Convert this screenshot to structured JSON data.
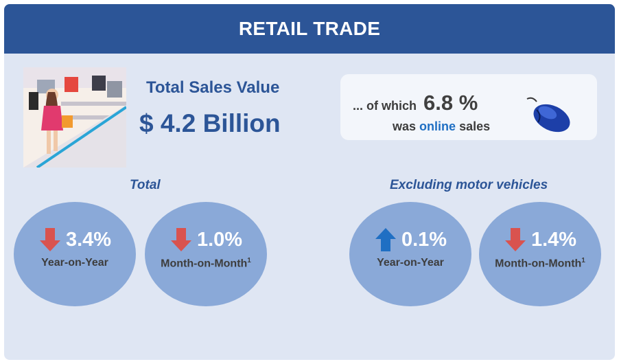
{
  "header": {
    "title": "RETAIL TRADE"
  },
  "summary": {
    "total_sales_label": "Total Sales Value",
    "total_sales_value": "$ 4.2 Billion"
  },
  "online": {
    "prefix": "... of which",
    "percent": "6.8 %",
    "was": "was",
    "online_word": "online",
    "suffix": "sales",
    "icon": "computer-mouse-icon"
  },
  "sections": {
    "total": {
      "title": "Total",
      "yoy": {
        "value": "3.4%",
        "label": "Year-on-Year",
        "direction": "down"
      },
      "mom": {
        "value": "1.0%",
        "label": "Month-on-Month",
        "footnote": "1",
        "direction": "down"
      }
    },
    "excluding": {
      "title": "Excluding motor vehicles",
      "yoy": {
        "value": "0.1%",
        "label": "Year-on-Year",
        "direction": "up"
      },
      "mom": {
        "value": "1.4%",
        "label": "Month-on-Month",
        "footnote": "1",
        "direction": "down"
      }
    }
  },
  "colors": {
    "header_bg": "#2c5597",
    "card_bg": "#dfe6f3",
    "bubble": "#8aa9d8",
    "down_arrow": "#d9534f",
    "up_arrow": "#1f6fc3"
  }
}
